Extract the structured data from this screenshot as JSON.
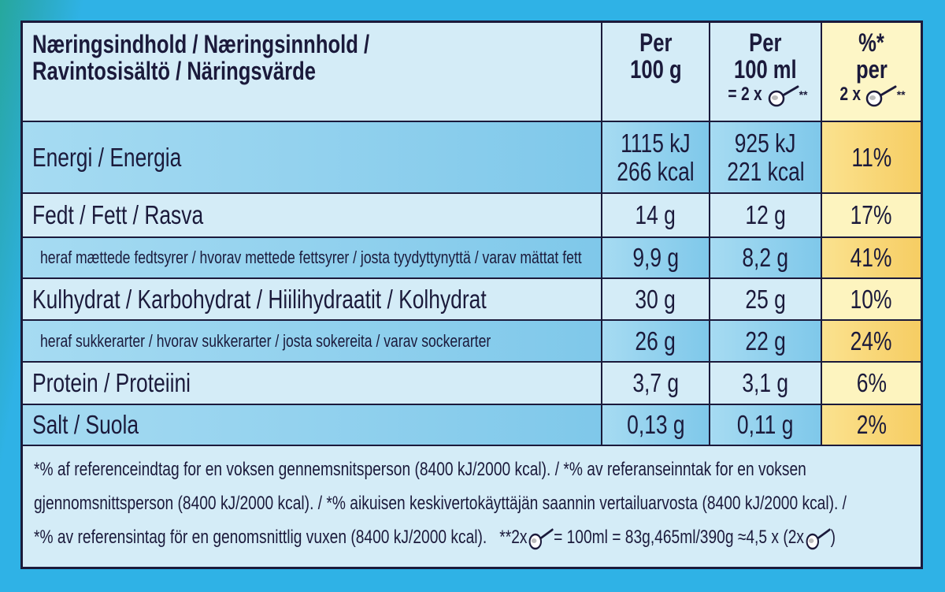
{
  "header": {
    "title_lines": [
      "Næringsindhold / Næringsinnhold /",
      "Ravintosisältö / Näringsvärde"
    ],
    "per_100g": [
      "Per",
      "100 g"
    ],
    "per_100ml": {
      "lines": [
        "Per",
        "100 ml"
      ],
      "spoon_prefix": "= 2 x",
      "spoon_suffix": "**"
    },
    "percent": {
      "lines": [
        "%*",
        "per"
      ],
      "spoon_prefix": "2 x",
      "spoon_suffix": "**"
    }
  },
  "rows": [
    {
      "label": "Energi / Energia",
      "per_100g": [
        "1115 kJ",
        "266 kcal"
      ],
      "per_100ml": [
        "925 kJ",
        "221 kcal"
      ],
      "percent": [
        "11%"
      ]
    },
    {
      "label": "Fedt / Fett / Rasva",
      "per_100g": [
        "14 g"
      ],
      "per_100ml": [
        "12 g"
      ],
      "percent": [
        "17%"
      ]
    },
    {
      "label": "heraf mættede fedtsyrer / hvorav mettede fettsyrer / josta tyydyttynyttä / varav mättat fett",
      "per_100g": [
        "9,9 g"
      ],
      "per_100ml": [
        "8,2 g"
      ],
      "percent": [
        "41%"
      ]
    },
    {
      "label": "Kulhydrat / Karbohydrat / Hiilihydraatit / Kolhydrat",
      "per_100g": [
        "30 g"
      ],
      "per_100ml": [
        "25 g"
      ],
      "percent": [
        "10%"
      ]
    },
    {
      "label": "heraf sukkerarter / hvorav sukkerarter / josta sokereita / varav sockerarter",
      "per_100g": [
        "26 g"
      ],
      "per_100ml": [
        "22 g"
      ],
      "percent": [
        "24%"
      ]
    },
    {
      "label": "Protein / Proteiini",
      "per_100g": [
        "3,7 g"
      ],
      "per_100ml": [
        "3,1 g"
      ],
      "percent": [
        "6%"
      ]
    },
    {
      "label": "Salt / Suola",
      "per_100g": [
        "0,13 g"
      ],
      "per_100ml": [
        "0,11 g"
      ],
      "percent": [
        "2%"
      ]
    }
  ],
  "footnote": {
    "lines": [
      "*% af referenceindtag for en voksen gennemsnitsperson (8400 kJ/2000 kcal). / *% av referanseinntak for en voksen",
      "gjennomsnittsperson (8400 kJ/2000 kcal). / *% aikuisen keskivertokäyttäjän saannin vertailuarvosta (8400 kJ/2000 kcal). /"
    ],
    "last_line": [
      "*% av referensintag för en genomsnittlig vuxen (8400 kJ/2000 kcal).   **2x",
      "= 100ml = 83g,465ml/390g ≈4,5 x (2x",
      ")"
    ]
  }
}
